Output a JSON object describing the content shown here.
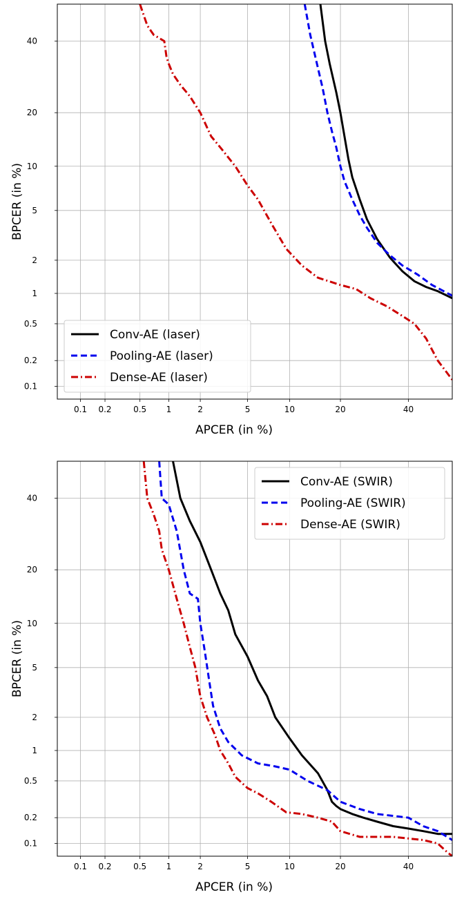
{
  "chart_data": [
    {
      "type": "line",
      "title": "",
      "xlabel": "APCER (in %)",
      "ylabel": "BPCER (in %)",
      "x_scale": "normal-deviate",
      "y_scale": "normal-deviate",
      "xlim": [
        0.05,
        55
      ],
      "ylim": [
        0.07,
        52
      ],
      "x_ticks": [
        0.1,
        0.2,
        0.5,
        1,
        2,
        5,
        10,
        20,
        40
      ],
      "x_tick_labels": [
        "0.1",
        "0.2",
        "0.5",
        "1",
        "2",
        "5",
        "10",
        "20",
        "40"
      ],
      "y_ticks": [
        0.1,
        0.2,
        0.5,
        1,
        2,
        5,
        10,
        20,
        40
      ],
      "y_tick_labels": [
        "0.1",
        "0.2",
        "0.5",
        "1",
        "2",
        "5",
        "10",
        "20",
        "40"
      ],
      "grid": true,
      "legend_position": "bottom-left",
      "series": [
        {
          "name": "Conv-AE (laser)",
          "color": "#000000",
          "style": "solid",
          "x": [
            15.5,
            16.5,
            17.5,
            19,
            20,
            21,
            22,
            23,
            25,
            27,
            30,
            34,
            38,
            42,
            46,
            50,
            55
          ],
          "y": [
            52,
            40,
            33,
            25,
            20,
            15,
            11,
            8.5,
            6,
            4.3,
            3,
            2.1,
            1.6,
            1.3,
            1.15,
            1.05,
            0.9
          ]
        },
        {
          "name": "Pooling-AE (laser)",
          "color": "#0000ee",
          "style": "dashed",
          "x": [
            12.5,
            13.5,
            14.5,
            16,
            17,
            18,
            19,
            20,
            21,
            23,
            25,
            27,
            30,
            34,
            38,
            43,
            48,
            55
          ],
          "y": [
            52,
            42,
            35,
            26,
            20,
            16,
            13,
            10,
            8,
            6,
            4.6,
            3.7,
            2.8,
            2.2,
            1.8,
            1.5,
            1.2,
            0.95
          ]
        },
        {
          "name": "Dense-AE (laser)",
          "color": "#cc0000",
          "style": "dashdot",
          "x": [
            0.5,
            0.6,
            0.7,
            0.9,
            0.95,
            1.0,
            1.1,
            1.3,
            1.6,
            2.0,
            2.5,
            3.0,
            4.0,
            5.0,
            6.0,
            7.5,
            9.5,
            12,
            15,
            20,
            24,
            28,
            33,
            38,
            42,
            46,
            50,
            55
          ],
          "y": [
            52,
            45,
            42,
            40,
            35,
            33,
            30,
            27,
            24,
            20,
            15,
            13,
            10,
            7.5,
            6,
            4,
            2.5,
            1.8,
            1.4,
            1.2,
            1.1,
            0.9,
            0.75,
            0.6,
            0.5,
            0.35,
            0.2,
            0.12
          ]
        }
      ]
    },
    {
      "type": "line",
      "title": "",
      "xlabel": "APCER (in %)",
      "ylabel": "BPCER (in %)",
      "x_scale": "normal-deviate",
      "y_scale": "normal-deviate",
      "xlim": [
        0.05,
        55
      ],
      "ylim": [
        0.07,
        52
      ],
      "x_ticks": [
        0.1,
        0.2,
        0.5,
        1,
        2,
        5,
        10,
        20,
        40
      ],
      "x_tick_labels": [
        "0.1",
        "0.2",
        "0.5",
        "1",
        "2",
        "5",
        "10",
        "20",
        "40"
      ],
      "y_ticks": [
        0.1,
        0.2,
        0.5,
        1,
        2,
        5,
        10,
        20,
        40
      ],
      "y_tick_labels": [
        "0.1",
        "0.2",
        "0.5",
        "1",
        "2",
        "5",
        "10",
        "20",
        "40"
      ],
      "grid": true,
      "legend_position": "top-right",
      "series": [
        {
          "name": "Conv-AE (SWIR)",
          "color": "#000000",
          "style": "solid",
          "x": [
            1.1,
            1.3,
            1.6,
            2.0,
            2.5,
            3.0,
            3.5,
            4.0,
            5.0,
            6.0,
            7.0,
            8.0,
            10,
            12,
            15,
            17,
            18,
            19,
            20,
            23,
            26,
            30,
            35,
            40,
            45,
            50,
            55
          ],
          "y": [
            52,
            40,
            33,
            27,
            20,
            15,
            12,
            8.5,
            6,
            4,
            3,
            2,
            1.3,
            0.9,
            0.6,
            0.4,
            0.3,
            0.27,
            0.25,
            0.22,
            0.2,
            0.18,
            0.16,
            0.15,
            0.14,
            0.13,
            0.13
          ]
        },
        {
          "name": "Pooling-AE (SWIR)",
          "color": "#0000ee",
          "style": "dashed",
          "x": [
            0.8,
            0.85,
            1.0,
            1.2,
            1.4,
            1.6,
            1.9,
            2.0,
            2.2,
            2.4,
            2.6,
            3.0,
            3.5,
            4.5,
            6,
            8,
            10,
            13,
            17,
            20,
            25,
            30,
            40,
            45,
            50,
            55
          ],
          "y": [
            52,
            40,
            38,
            30,
            20,
            15,
            14,
            10,
            6.5,
            4,
            2.5,
            1.6,
            1.2,
            0.9,
            0.75,
            0.7,
            0.65,
            0.5,
            0.4,
            0.3,
            0.25,
            0.22,
            0.2,
            0.16,
            0.14,
            0.11
          ]
        },
        {
          "name": "Dense-AE (SWIR)",
          "color": "#cc0000",
          "style": "dashdot",
          "x": [
            0.55,
            0.6,
            0.7,
            0.8,
            0.85,
            1.0,
            1.2,
            1.4,
            1.6,
            1.8,
            2.0,
            2.3,
            2.7,
            3.0,
            3.5,
            4.0,
            5.0,
            6.0,
            7.5,
            9.5,
            12,
            15,
            18,
            20,
            25,
            35,
            45,
            50,
            53,
            55
          ],
          "y": [
            52,
            40,
            35,
            30,
            25,
            20,
            14,
            10,
            7,
            5,
            3,
            2,
            1.4,
            1,
            0.75,
            0.55,
            0.42,
            0.37,
            0.3,
            0.23,
            0.22,
            0.2,
            0.18,
            0.14,
            0.12,
            0.12,
            0.11,
            0.1,
            0.08,
            0.07
          ]
        }
      ]
    }
  ]
}
